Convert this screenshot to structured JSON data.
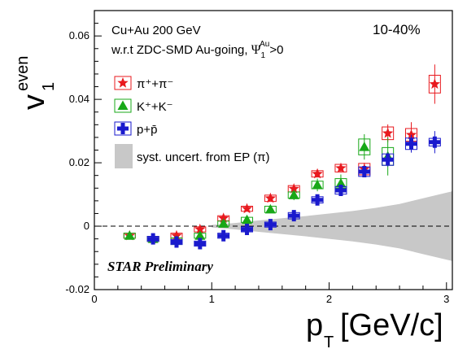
{
  "chart_data": {
    "type": "scatter",
    "title": "",
    "xlabel": "p_T [GeV/c]",
    "ylabel": "v_1^even",
    "xlim": [
      0,
      3.05
    ],
    "ylim": [
      -0.02,
      0.068
    ],
    "x_ticks": [
      0,
      1,
      2,
      3
    ],
    "y_ticks": [
      -0.02,
      0,
      0.02,
      0.04,
      0.06
    ],
    "legend_position": "top-left",
    "annotations": {
      "system": "Cu+Au 200 GeV",
      "reference": "w.r.t ZDC-SMD Au-going, ",
      "reference_symbol": "Ψ",
      "reference_sub": "1",
      "reference_sup": "Au",
      "reference_tail": ">0",
      "centrality": "10-40%",
      "preliminary": "STAR Preliminary"
    },
    "series": [
      {
        "name": "π⁺+π⁻",
        "marker": "star",
        "color": "#e8191e",
        "x": [
          0.3,
          0.5,
          0.7,
          0.9,
          1.1,
          1.3,
          1.5,
          1.7,
          1.9,
          2.1,
          2.3,
          2.5,
          2.7,
          2.9
        ],
        "y": [
          -0.003,
          -0.004,
          -0.003,
          -0.001,
          0.0025,
          0.0055,
          0.0088,
          0.0118,
          0.0165,
          0.0183,
          0.018,
          0.0293,
          0.0288,
          0.0448
        ],
        "syst": [
          0.0008,
          0.0008,
          0.0008,
          0.0008,
          0.0008,
          0.0008,
          0.001,
          0.001,
          0.001,
          0.0012,
          0.0018,
          0.002,
          0.002,
          0.0028
        ],
        "stat": [
          0.0002,
          0.0002,
          0.0002,
          0.0003,
          0.0004,
          0.0005,
          0.0006,
          0.0008,
          0.001,
          0.0013,
          0.002,
          0.0028,
          0.004,
          0.0062
        ]
      },
      {
        "name": "K⁺+K⁻",
        "marker": "triangle",
        "color": "#18a818",
        "x": [
          0.3,
          0.5,
          0.7,
          0.9,
          1.1,
          1.3,
          1.5,
          1.7,
          1.9,
          2.1,
          2.3,
          2.5
        ],
        "y": [
          -0.003,
          -0.004,
          -0.0045,
          -0.003,
          0.0008,
          0.002,
          0.0053,
          0.0098,
          0.013,
          0.0135,
          0.025,
          0.022
        ],
        "syst": [
          0.0008,
          0.0008,
          0.0008,
          0.0008,
          0.0008,
          0.0008,
          0.001,
          0.001,
          0.0012,
          0.0015,
          0.0025,
          0.0028
        ],
        "stat": [
          0.0003,
          0.0004,
          0.0005,
          0.0006,
          0.0008,
          0.001,
          0.0012,
          0.0016,
          0.002,
          0.0028,
          0.004,
          0.006
        ]
      },
      {
        "name": "p+p̄",
        "marker": "cross",
        "color": "#1a1acd",
        "x": [
          0.5,
          0.7,
          0.9,
          1.1,
          1.3,
          1.5,
          1.7,
          1.9,
          2.1,
          2.3,
          2.5,
          2.7,
          2.9
        ],
        "y": [
          -0.004,
          -0.005,
          -0.0055,
          -0.003,
          -0.001,
          0.0005,
          0.0033,
          0.0083,
          0.0113,
          0.0172,
          0.021,
          0.026,
          0.0265
        ],
        "syst": [
          0.0008,
          0.0008,
          0.0008,
          0.0008,
          0.0008,
          0.0008,
          0.001,
          0.001,
          0.0012,
          0.0015,
          0.0018,
          0.0018,
          0.0012
        ],
        "stat": [
          0.0003,
          0.0004,
          0.0005,
          0.0006,
          0.0006,
          0.0007,
          0.0008,
          0.001,
          0.0013,
          0.0017,
          0.0022,
          0.0028,
          0.0035
        ]
      }
    ],
    "syst_band": {
      "name": "syst. uncert. from EP (π)",
      "color": "#c8c8c8",
      "x": [
        1.0,
        1.2,
        1.4,
        1.6,
        1.8,
        2.0,
        2.2,
        2.4,
        2.6,
        2.8,
        3.05
      ],
      "upper": [
        0.0004,
        0.001,
        0.0018,
        0.0025,
        0.0032,
        0.004,
        0.0048,
        0.0058,
        0.007,
        0.0088,
        0.011
      ],
      "lower": [
        -0.0004,
        -0.001,
        -0.0018,
        -0.0025,
        -0.0032,
        -0.004,
        -0.0048,
        -0.0058,
        -0.007,
        -0.0088,
        -0.011
      ]
    },
    "reference_line": {
      "y": 0,
      "style": "dashed"
    }
  }
}
